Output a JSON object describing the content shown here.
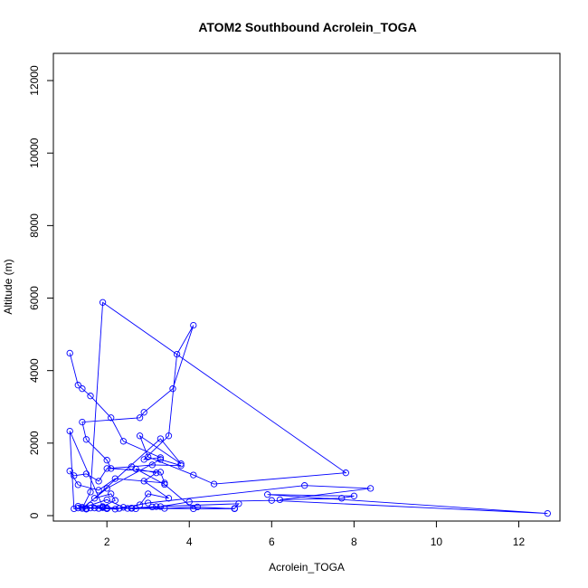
{
  "chart_data": {
    "type": "line",
    "title": "ATOM2 Southbound Acrolein_TOGA",
    "xlabel": "Acrolein_TOGA",
    "ylabel": "Altitude (m)",
    "xlim": [
      0.7,
      13.0
    ],
    "ylim": [
      -150,
      12750
    ],
    "xticks": [
      2,
      4,
      6,
      8,
      10,
      12
    ],
    "yticks": [
      0,
      2000,
      4000,
      6000,
      8000,
      10000,
      12000
    ],
    "grid": false,
    "series_color": "#0000ff",
    "marker": "open-circle",
    "series": [
      {
        "x": [
          1.1,
          1.3,
          1.4,
          1.6,
          2.1,
          2.4,
          3.3,
          2.9,
          3.5,
          3.7,
          4.1,
          3.6,
          2.9,
          2.8,
          1.4,
          1.5,
          2.0,
          2.1,
          3.3,
          3.4,
          2.2,
          1.8,
          1.3,
          1.1,
          1.2,
          1.5,
          1.8,
          2.0,
          2.6,
          3.1,
          3.8,
          3.3,
          2.0,
          1.4,
          1.6,
          1.9,
          7.8,
          4.6,
          4.1,
          3.0,
          2.8,
          3.8,
          3.3,
          1.7,
          2.1,
          2.2,
          1.9,
          1.1,
          1.2,
          1.3,
          1.5,
          1.3,
          1.7,
          2.0,
          1.6,
          2.0,
          2.4,
          2.8,
          3.0,
          3.5,
          2.9,
          3.2,
          2.7,
          3.4,
          4.1,
          5.1,
          5.2,
          3.2,
          2.5,
          1.9,
          1.6,
          1.4,
          1.8,
          2.2,
          3.0,
          6.8,
          8.4,
          6.2,
          7.7,
          8.0,
          5.9,
          12.7,
          6.0,
          4.0,
          3.3,
          2.7,
          2.0,
          1.5,
          1.9,
          2.3,
          2.6,
          3.1,
          3.4,
          4.2,
          5.1,
          2.6,
          2.3,
          2.0,
          1.8
        ],
        "y": [
          4480,
          3600,
          3500,
          3300,
          2700,
          2050,
          1600,
          1550,
          2200,
          4450,
          5250,
          3500,
          2850,
          2700,
          2580,
          2100,
          1530,
          1300,
          1200,
          900,
          1020,
          700,
          850,
          1230,
          1100,
          1150,
          950,
          1300,
          1350,
          1400,
          1380,
          1550,
          750,
          200,
          650,
          5880,
          1180,
          870,
          1120,
          1620,
          2200,
          1430,
          2120,
          480,
          600,
          420,
          250,
          2330,
          190,
          210,
          180,
          260,
          210,
          200,
          290,
          440,
          230,
          300,
          600,
          480,
          950,
          1180,
          1290,
          860,
          190,
          200,
          330,
          250,
          200,
          230,
          210,
          230,
          200,
          180,
          350,
          830,
          750,
          440,
          480,
          540,
          580,
          60,
          420,
          380,
          250,
          190,
          210,
          200,
          220,
          200,
          210,
          240,
          200,
          240,
          190,
          200,
          200,
          190,
          200
        ]
      }
    ]
  }
}
